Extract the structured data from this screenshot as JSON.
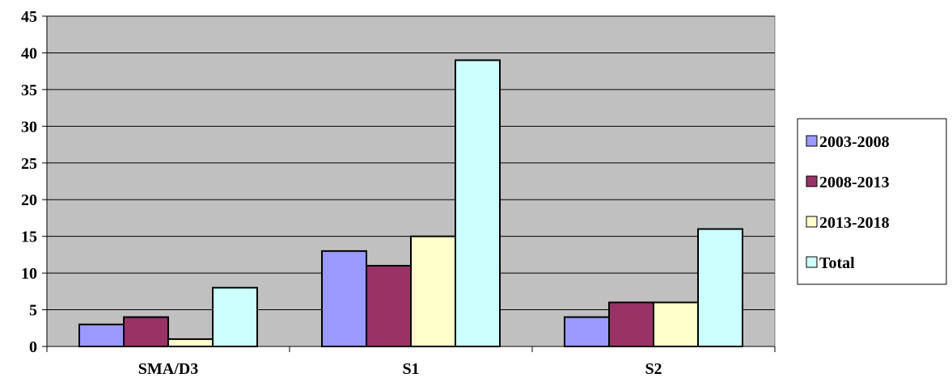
{
  "chart_data": {
    "type": "bar",
    "categories": [
      "SMA/D3",
      "S1",
      "S2"
    ],
    "series": [
      {
        "name": "2003-2008",
        "values": [
          3,
          13,
          4
        ],
        "color": "#9999ff"
      },
      {
        "name": "2008-2013",
        "values": [
          4,
          11,
          6
        ],
        "color": "#993366"
      },
      {
        "name": "2013-2018",
        "values": [
          1,
          15,
          6
        ],
        "color": "#ffffcc"
      },
      {
        "name": "Total",
        "values": [
          8,
          39,
          16
        ],
        "color": "#ccffff"
      }
    ],
    "yticks": [
      "0",
      "5",
      "10",
      "15",
      "20",
      "25",
      "30",
      "35",
      "40",
      "45"
    ],
    "ylim": [
      0,
      45
    ],
    "grid": true,
    "plot_background": "#c0c0c0",
    "legend_position": "right"
  }
}
